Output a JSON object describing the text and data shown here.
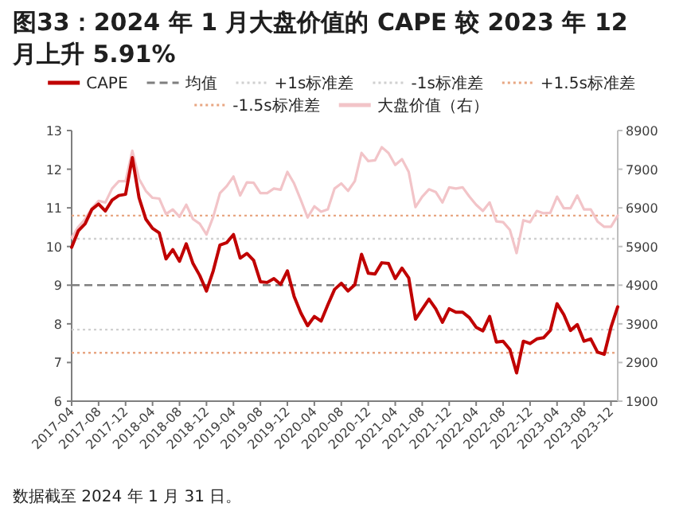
{
  "chart_data": {
    "type": "line",
    "title": "图33：2024 年 1 月大盘价值的 CAPE 较 2023 年 12 月上升 5.91%",
    "annotations": [
      "数据截至 2024 年 1 月 31 日。"
    ],
    "x": [
      "2017-04",
      "2017-05",
      "2017-06",
      "2017-07",
      "2017-08",
      "2017-09",
      "2017-10",
      "2017-11",
      "2017-12",
      "2018-01",
      "2018-02",
      "2018-03",
      "2018-04",
      "2018-05",
      "2018-06",
      "2018-07",
      "2018-08",
      "2018-09",
      "2018-10",
      "2018-11",
      "2018-12",
      "2019-01",
      "2019-02",
      "2019-03",
      "2019-04",
      "2019-05",
      "2019-06",
      "2019-07",
      "2019-08",
      "2019-09",
      "2019-10",
      "2019-11",
      "2019-12",
      "2020-01",
      "2020-02",
      "2020-03",
      "2020-04",
      "2020-05",
      "2020-06",
      "2020-07",
      "2020-08",
      "2020-09",
      "2020-10",
      "2020-11",
      "2020-12",
      "2021-01",
      "2021-02",
      "2021-03",
      "2021-04",
      "2021-05",
      "2021-06",
      "2021-07",
      "2021-08",
      "2021-09",
      "2021-10",
      "2021-11",
      "2021-12",
      "2022-01",
      "2022-02",
      "2022-03",
      "2022-04",
      "2022-05",
      "2022-06",
      "2022-07",
      "2022-08",
      "2022-09",
      "2022-10",
      "2022-11",
      "2022-12",
      "2023-01",
      "2023-02",
      "2023-03",
      "2023-04",
      "2023-05",
      "2023-06",
      "2023-07",
      "2023-08",
      "2023-09",
      "2023-10",
      "2023-11",
      "2023-12",
      "2024-01"
    ],
    "series": [
      {
        "name": "CAPE",
        "color": "#c00000",
        "values": [
          9.98,
          10.41,
          10.59,
          10.96,
          11.1,
          10.92,
          11.2,
          11.32,
          11.35,
          12.3,
          11.26,
          10.71,
          10.47,
          10.35,
          9.68,
          9.92,
          9.62,
          10.07,
          9.56,
          9.25,
          8.85,
          9.37,
          10.04,
          10.1,
          10.31,
          9.7,
          9.82,
          9.64,
          9.09,
          9.07,
          9.17,
          9.02,
          9.37,
          8.71,
          8.28,
          7.95,
          8.19,
          8.07,
          8.49,
          8.89,
          9.05,
          8.85,
          9.01,
          9.8,
          9.31,
          9.29,
          9.58,
          9.56,
          9.17,
          9.44,
          9.19,
          8.12,
          8.38,
          8.64,
          8.39,
          8.04,
          8.39,
          8.3,
          8.3,
          8.16,
          7.91,
          7.82,
          8.19,
          7.53,
          7.55,
          7.34,
          6.73,
          7.55,
          7.49,
          7.61,
          7.64,
          7.83,
          8.52,
          8.24,
          7.83,
          7.98,
          7.55,
          7.61,
          7.27,
          7.21,
          7.91,
          8.44
        ]
      },
      {
        "name": "大盘价值（右）",
        "color": "#f2c4c8",
        "axis": "y2",
        "values": [
          6130,
          6410,
          6610,
          6890,
          7080,
          7040,
          7400,
          7590,
          7590,
          8380,
          7650,
          7340,
          7160,
          7140,
          6740,
          6860,
          6670,
          6980,
          6610,
          6490,
          6210,
          6670,
          7280,
          7460,
          7710,
          7220,
          7560,
          7550,
          7280,
          7280,
          7400,
          7370,
          7830,
          7530,
          7100,
          6650,
          6940,
          6800,
          6860,
          7400,
          7530,
          7340,
          7590,
          8320,
          8110,
          8130,
          8470,
          8320,
          8010,
          8160,
          7830,
          6920,
          7190,
          7380,
          7310,
          7040,
          7430,
          7400,
          7430,
          7190,
          6980,
          6820,
          7040,
          6550,
          6530,
          6330,
          5730,
          6580,
          6530,
          6820,
          6760,
          6770,
          7190,
          6890,
          6890,
          7220,
          6860,
          6860,
          6550,
          6410,
          6410,
          6700
        ]
      }
    ],
    "ref_lines": [
      {
        "axis": "y",
        "value": 9.0,
        "label": "均值",
        "color": "#7f7f7f",
        "line_style": "dashed"
      },
      {
        "axis": "y",
        "value": 10.2,
        "label": "+1s标准差",
        "color": "#d0d0d0",
        "line_style": "dotted"
      },
      {
        "axis": "y",
        "value": 7.85,
        "label": "-1s标准差",
        "color": "#d0d0d0",
        "line_style": "dotted"
      },
      {
        "axis": "y",
        "value": 10.8,
        "label": "+1.5s标准差",
        "color": "#e8a682",
        "line_style": "dotted"
      },
      {
        "axis": "y",
        "value": 7.25,
        "label": "-1.5s标准差",
        "color": "#e8a682",
        "line_style": "dotted"
      }
    ],
    "xlim": [
      "2017-04",
      "2024-01"
    ],
    "xticks": [
      "2017-04",
      "2017-08",
      "2017-12",
      "2018-04",
      "2018-08",
      "2018-12",
      "2019-04",
      "2019-08",
      "2019-12",
      "2020-04",
      "2020-08",
      "2020-12",
      "2021-04",
      "2021-08",
      "2021-12",
      "2022-04",
      "2022-08",
      "2022-12",
      "2023-04",
      "2023-08",
      "2023-12"
    ],
    "ylim": [
      6,
      13
    ],
    "yticks": [
      6,
      7,
      8,
      9,
      10,
      11,
      12,
      13
    ],
    "y2lim": [
      1900,
      8900
    ],
    "y2ticks": [
      1900,
      2900,
      3900,
      4900,
      5900,
      6900,
      7900,
      8900
    ],
    "legend": "top",
    "grid": false,
    "line_style": "solid"
  }
}
